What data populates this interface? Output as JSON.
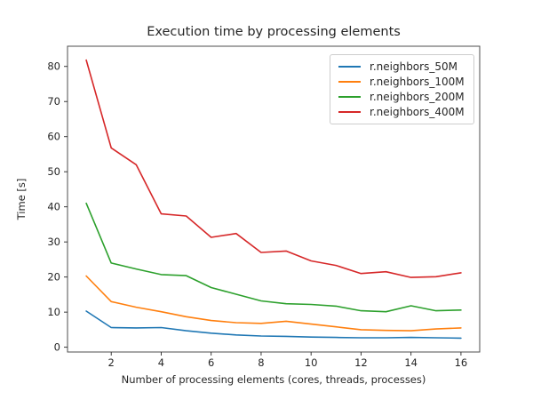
{
  "chart_data": {
    "type": "line",
    "title": "Execution time by processing elements",
    "xlabel": "Number of processing elements (cores, threads, processes)",
    "ylabel": "Time [s]",
    "x": [
      1,
      2,
      3,
      4,
      5,
      6,
      7,
      8,
      9,
      10,
      11,
      12,
      13,
      14,
      15,
      16
    ],
    "series": [
      {
        "name": "r.neighbors_50M",
        "color": "#1f77b4",
        "values": [
          10.3,
          5.6,
          5.5,
          5.6,
          4.7,
          4.0,
          3.5,
          3.2,
          3.1,
          2.9,
          2.8,
          2.7,
          2.7,
          2.8,
          2.7,
          2.6
        ]
      },
      {
        "name": "r.neighbors_100M",
        "color": "#ff7f0e",
        "values": [
          20.3,
          13.0,
          11.4,
          10.1,
          8.7,
          7.6,
          7.0,
          6.8,
          7.4,
          6.6,
          5.8,
          5.0,
          4.8,
          4.7,
          5.2,
          5.5
        ]
      },
      {
        "name": "r.neighbors_200M",
        "color": "#2ca02c",
        "values": [
          41.0,
          24.0,
          22.3,
          20.7,
          20.4,
          17.0,
          15.1,
          13.2,
          12.4,
          12.2,
          11.7,
          10.4,
          10.1,
          11.8,
          10.4,
          10.6
        ]
      },
      {
        "name": "r.neighbors_400M",
        "color": "#d62728",
        "values": [
          81.8,
          56.8,
          52.0,
          38.0,
          37.4,
          31.3,
          32.4,
          27.0,
          27.4,
          24.6,
          23.3,
          21.0,
          21.5,
          19.9,
          20.1,
          21.2
        ]
      }
    ],
    "xticks": [
      2,
      4,
      6,
      8,
      10,
      12,
      14,
      16
    ],
    "yticks": [
      0,
      10,
      20,
      30,
      40,
      50,
      60,
      70,
      80
    ],
    "xlim": [
      0.25,
      16.75
    ],
    "ylim": [
      -1.36,
      85.76
    ],
    "grid": false,
    "legend_position": "upper-right",
    "spine_color": "#4d4d4d",
    "tick_color": "#262626",
    "background_color": "#ffffff"
  }
}
